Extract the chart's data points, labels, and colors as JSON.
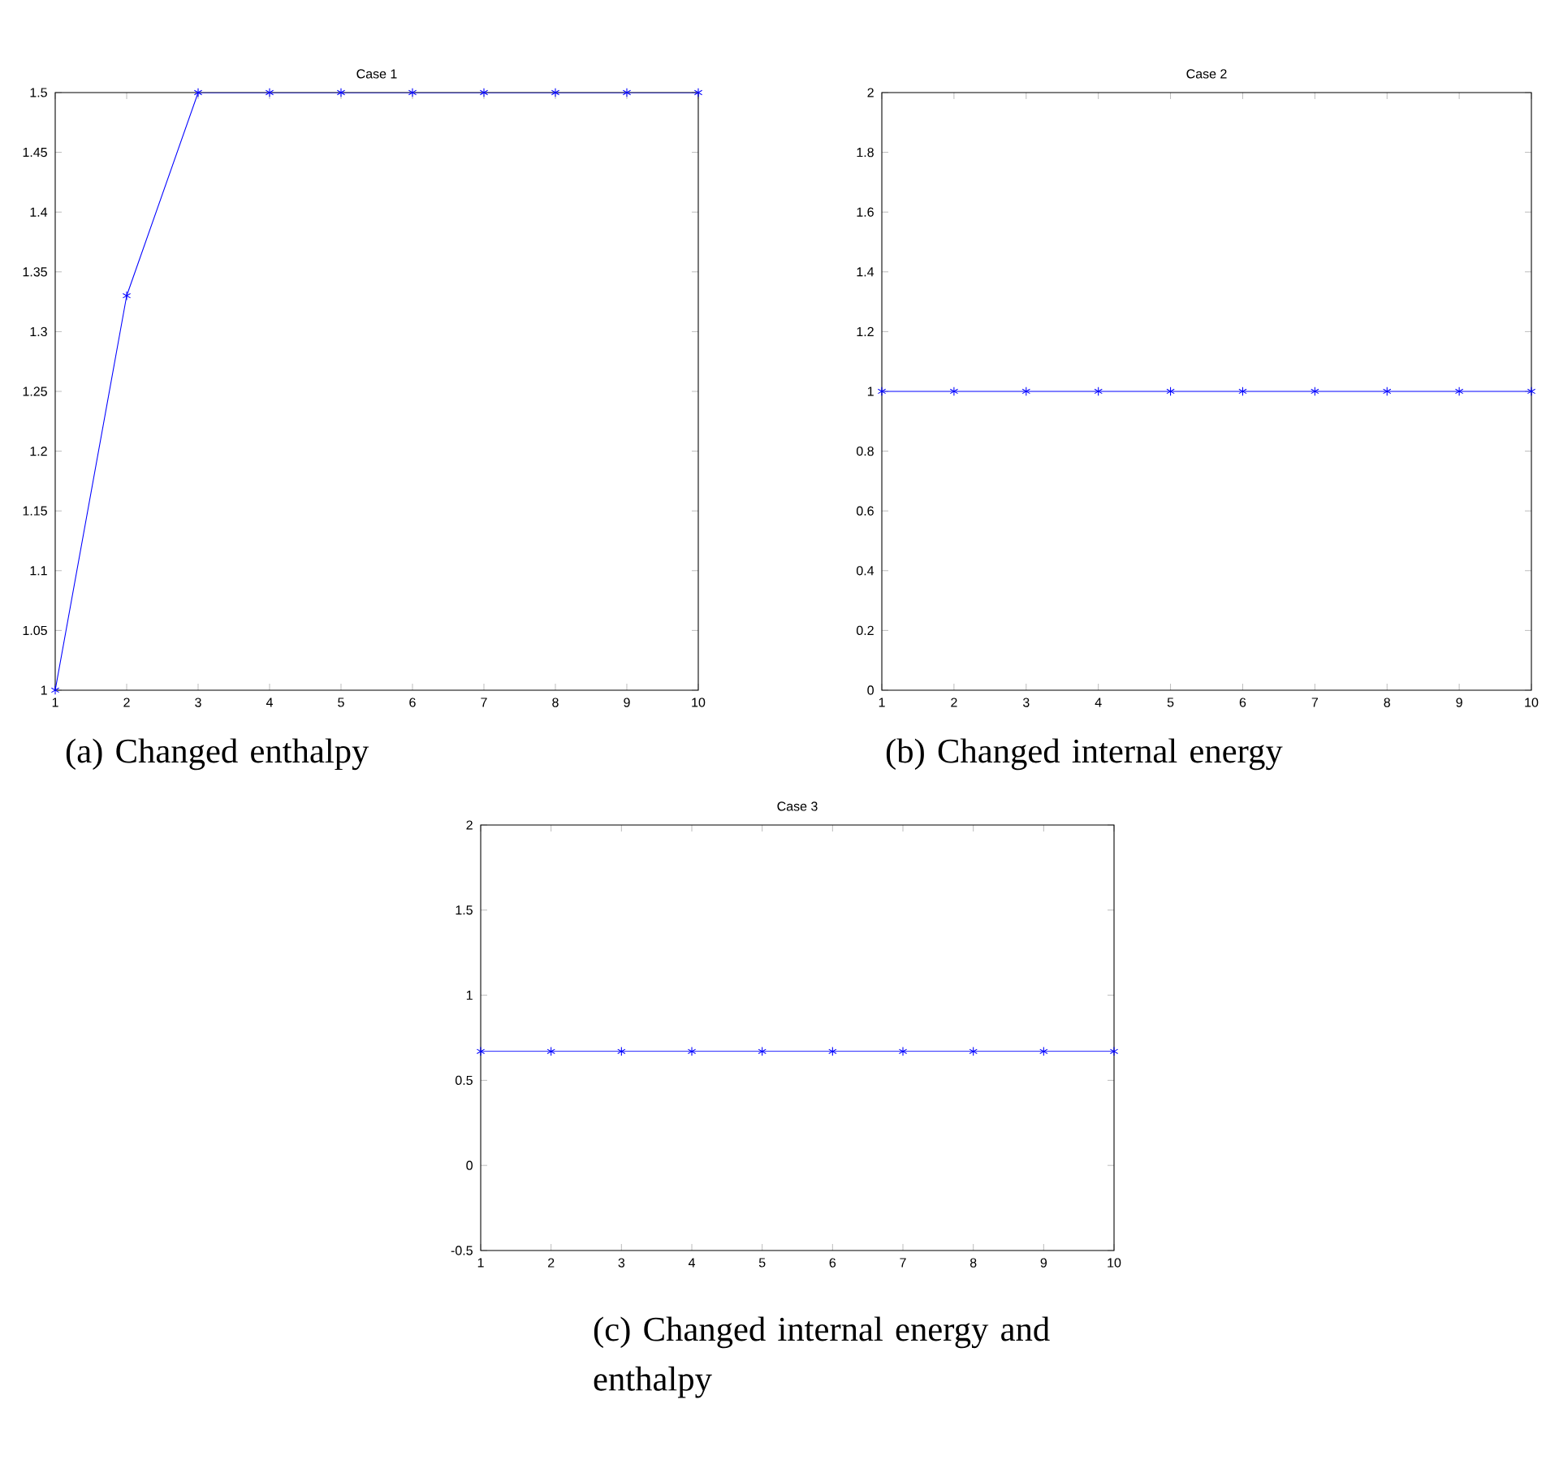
{
  "chart_data": [
    {
      "type": "line",
      "title": "Case 1",
      "x": [
        1,
        2,
        3,
        4,
        5,
        6,
        7,
        8,
        9,
        10
      ],
      "series": [
        {
          "color": "#0000ff",
          "values": [
            1,
            1.33,
            1.5,
            1.5,
            1.5,
            1.5,
            1.5,
            1.5,
            1.5,
            1.5
          ]
        }
      ],
      "xlim": [
        1,
        10
      ],
      "xticks": [
        1,
        2,
        3,
        4,
        5,
        6,
        7,
        8,
        9,
        10
      ],
      "ylim": [
        1,
        1.5
      ],
      "yticks": [
        1,
        1.05,
        1.1,
        1.15,
        1.2,
        1.25,
        1.3,
        1.35,
        1.4,
        1.45,
        1.5
      ],
      "marker": "cross",
      "line_style": "solid",
      "annotations": [
        "(a) Changed enthalpy"
      ]
    },
    {
      "type": "line",
      "title": "Case 2",
      "x": [
        1,
        2,
        3,
        4,
        5,
        6,
        7,
        8,
        9,
        10
      ],
      "series": [
        {
          "color": "#0000ff",
          "values": [
            1,
            1,
            1,
            1,
            1,
            1,
            1,
            1,
            1,
            1
          ]
        }
      ],
      "xlim": [
        1,
        10
      ],
      "xticks": [
        1,
        2,
        3,
        4,
        5,
        6,
        7,
        8,
        9,
        10
      ],
      "ylim": [
        0,
        2
      ],
      "yticks": [
        0,
        0.2,
        0.4,
        0.6,
        0.8,
        1,
        1.2,
        1.4,
        1.6,
        1.8,
        2
      ],
      "marker": "cross",
      "line_style": "solid",
      "annotations": [
        "(b) Changed internal energy"
      ]
    },
    {
      "type": "line",
      "title": "Case 3",
      "x": [
        1,
        2,
        3,
        4,
        5,
        6,
        7,
        8,
        9,
        10
      ],
      "series": [
        {
          "color": "#0000ff",
          "values": [
            0.67,
            0.67,
            0.67,
            0.67,
            0.67,
            0.67,
            0.67,
            0.67,
            0.67,
            0.67
          ]
        }
      ],
      "xlim": [
        1,
        10
      ],
      "xticks": [
        1,
        2,
        3,
        4,
        5,
        6,
        7,
        8,
        9,
        10
      ],
      "ylim": [
        -0.5,
        2
      ],
      "yticks": [
        -0.5,
        0,
        0.5,
        1,
        1.5,
        2
      ],
      "marker": "cross",
      "line_style": "solid",
      "annotations": [
        "(c) Changed internal energy and enthalpy"
      ]
    }
  ]
}
